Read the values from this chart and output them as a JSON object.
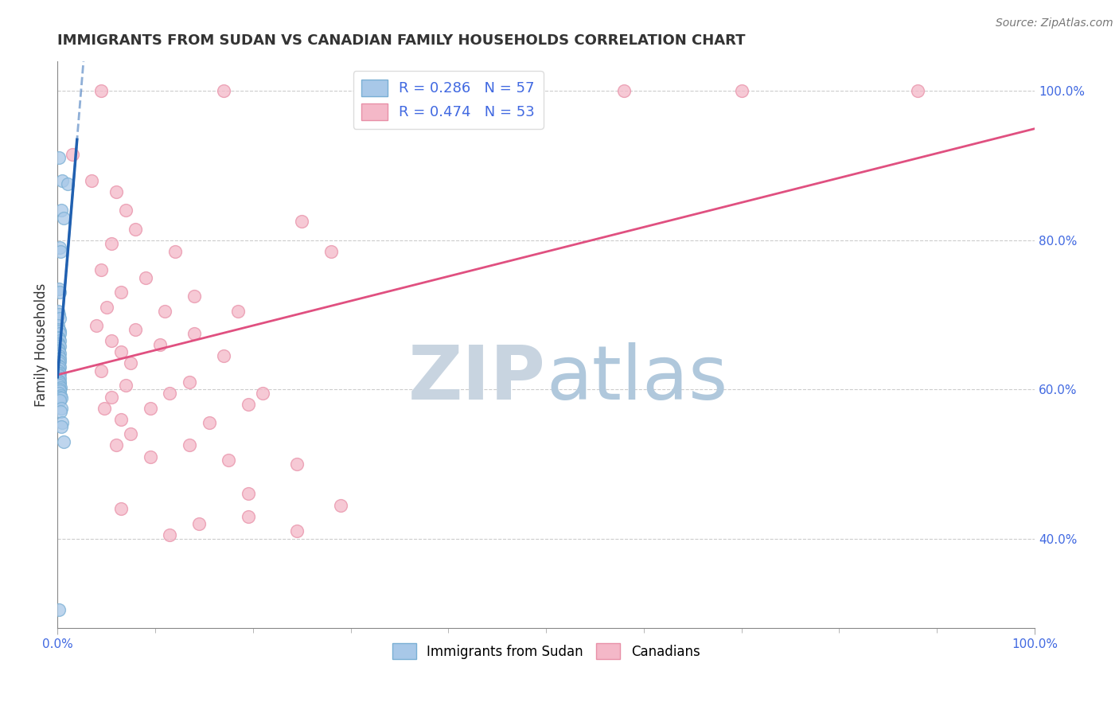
{
  "title": "IMMIGRANTS FROM SUDAN VS CANADIAN FAMILY HOUSEHOLDS CORRELATION CHART",
  "source_text": "Source: ZipAtlas.com",
  "ylabel": "Family Households",
  "legend_labels": [
    "Immigrants from Sudan",
    "Canadians"
  ],
  "legend_r_n": [
    {
      "R": "0.286",
      "N": "57"
    },
    {
      "R": "0.474",
      "N": "53"
    }
  ],
  "blue_color": "#a8c8e8",
  "pink_color": "#f4b8c8",
  "blue_edge_color": "#7aafd4",
  "pink_edge_color": "#e890a8",
  "blue_line_color": "#2060b0",
  "pink_line_color": "#e05080",
  "axis_label_color": "#4169e1",
  "title_color": "#333333",
  "background_color": "#ffffff",
  "grid_color": "#cccccc",
  "watermark_zip_color": "#c8d4e0",
  "watermark_atlas_color": "#b0c8dc",
  "blue_dots": [
    [
      0.15,
      91.0
    ],
    [
      0.5,
      88.0
    ],
    [
      1.0,
      87.5
    ],
    [
      0.4,
      84.0
    ],
    [
      0.6,
      83.0
    ],
    [
      0.2,
      79.0
    ],
    [
      0.3,
      78.5
    ],
    [
      0.15,
      73.5
    ],
    [
      0.25,
      73.0
    ],
    [
      0.1,
      70.5
    ],
    [
      0.15,
      70.0
    ],
    [
      0.2,
      69.5
    ],
    [
      0.1,
      68.5
    ],
    [
      0.15,
      68.0
    ],
    [
      0.2,
      67.8
    ],
    [
      0.25,
      67.5
    ],
    [
      0.1,
      67.0
    ],
    [
      0.15,
      66.8
    ],
    [
      0.2,
      66.5
    ],
    [
      0.1,
      66.2
    ],
    [
      0.15,
      66.0
    ],
    [
      0.2,
      65.8
    ],
    [
      0.1,
      65.5
    ],
    [
      0.15,
      65.2
    ],
    [
      0.1,
      65.0
    ],
    [
      0.2,
      64.8
    ],
    [
      0.15,
      64.5
    ],
    [
      0.25,
      64.2
    ],
    [
      0.1,
      64.0
    ],
    [
      0.2,
      63.8
    ],
    [
      0.15,
      63.5
    ],
    [
      0.1,
      63.2
    ],
    [
      0.2,
      63.0
    ],
    [
      0.15,
      62.8
    ],
    [
      0.1,
      62.5
    ],
    [
      0.2,
      62.2
    ],
    [
      0.1,
      62.0
    ],
    [
      0.15,
      61.8
    ],
    [
      0.2,
      61.5
    ],
    [
      0.1,
      61.2
    ],
    [
      0.2,
      61.0
    ],
    [
      0.25,
      60.8
    ],
    [
      0.15,
      60.5
    ],
    [
      0.3,
      60.2
    ],
    [
      0.2,
      60.0
    ],
    [
      0.25,
      59.8
    ],
    [
      0.15,
      59.5
    ],
    [
      0.3,
      59.2
    ],
    [
      0.2,
      59.0
    ],
    [
      0.35,
      58.8
    ],
    [
      0.25,
      58.5
    ],
    [
      0.4,
      57.5
    ],
    [
      0.3,
      57.0
    ],
    [
      0.5,
      55.5
    ],
    [
      0.4,
      55.0
    ],
    [
      0.6,
      53.0
    ],
    [
      0.15,
      30.5
    ]
  ],
  "pink_dots": [
    [
      4.5,
      100.0
    ],
    [
      17.0,
      100.0
    ],
    [
      58.0,
      100.0
    ],
    [
      70.0,
      100.0
    ],
    [
      88.0,
      100.0
    ],
    [
      1.5,
      91.5
    ],
    [
      3.5,
      88.0
    ],
    [
      6.0,
      86.5
    ],
    [
      7.0,
      84.0
    ],
    [
      8.0,
      81.5
    ],
    [
      25.0,
      82.5
    ],
    [
      5.5,
      79.5
    ],
    [
      12.0,
      78.5
    ],
    [
      28.0,
      78.5
    ],
    [
      4.5,
      76.0
    ],
    [
      9.0,
      75.0
    ],
    [
      6.5,
      73.0
    ],
    [
      14.0,
      72.5
    ],
    [
      5.0,
      71.0
    ],
    [
      11.0,
      70.5
    ],
    [
      18.5,
      70.5
    ],
    [
      4.0,
      68.5
    ],
    [
      8.0,
      68.0
    ],
    [
      14.0,
      67.5
    ],
    [
      5.5,
      66.5
    ],
    [
      10.5,
      66.0
    ],
    [
      6.5,
      65.0
    ],
    [
      17.0,
      64.5
    ],
    [
      7.5,
      63.5
    ],
    [
      4.5,
      62.5
    ],
    [
      7.0,
      60.5
    ],
    [
      13.5,
      61.0
    ],
    [
      5.5,
      59.0
    ],
    [
      11.5,
      59.5
    ],
    [
      21.0,
      59.5
    ],
    [
      4.8,
      57.5
    ],
    [
      9.5,
      57.5
    ],
    [
      19.5,
      58.0
    ],
    [
      6.5,
      56.0
    ],
    [
      15.5,
      55.5
    ],
    [
      7.5,
      54.0
    ],
    [
      6.0,
      52.5
    ],
    [
      13.5,
      52.5
    ],
    [
      9.5,
      51.0
    ],
    [
      17.5,
      50.5
    ],
    [
      24.5,
      50.0
    ],
    [
      19.5,
      46.0
    ],
    [
      29.0,
      44.5
    ],
    [
      6.5,
      44.0
    ],
    [
      19.5,
      43.0
    ],
    [
      14.5,
      42.0
    ],
    [
      24.5,
      41.0
    ],
    [
      11.5,
      40.5
    ]
  ],
  "xlim": [
    0,
    100
  ],
  "ylim": [
    28,
    104
  ],
  "right_yticks": [
    40,
    60,
    80,
    100
  ],
  "figsize": [
    14.06,
    8.92
  ]
}
